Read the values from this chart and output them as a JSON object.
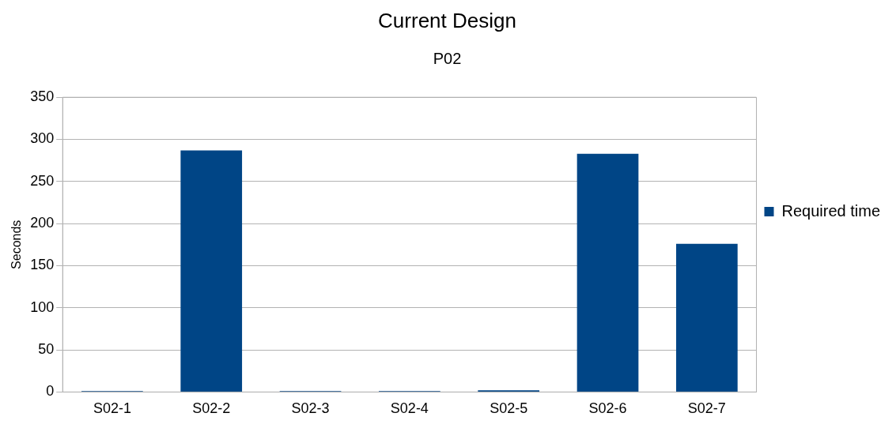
{
  "chart_data": {
    "type": "bar",
    "title": "Current Design",
    "subtitle": "P02",
    "ylabel": "Seconds",
    "categories": [
      "S02-1",
      "S02-2",
      "S02-3",
      "S02-4",
      "S02-5",
      "S02-6",
      "S02-7"
    ],
    "series": [
      {
        "name": "Required time",
        "color": "#004586",
        "values": [
          1,
          287,
          1,
          1,
          2,
          283,
          176
        ]
      }
    ],
    "ylim": [
      0,
      350
    ],
    "yticks": [
      0,
      50,
      100,
      150,
      200,
      250,
      300,
      350
    ],
    "grid": "y",
    "legend": "right"
  }
}
